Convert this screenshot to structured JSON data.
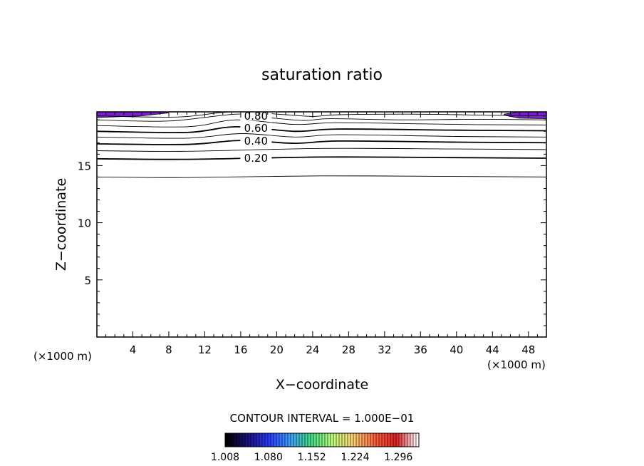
{
  "chart_data": {
    "type": "contour",
    "title": "saturation ratio",
    "xlabel": "X−coordinate",
    "ylabel": "Z−coordinate",
    "x_unit_left": "(×1000 m)",
    "x_unit_right": "(×1000 m)",
    "xlim": [
      0,
      50
    ],
    "ylim": [
      0,
      19.7
    ],
    "x_ticks": [
      4,
      8,
      12,
      16,
      20,
      24,
      28,
      32,
      36,
      40,
      44,
      48
    ],
    "y_ticks": [
      5,
      10,
      15
    ],
    "contour_interval_text": "CONTOUR INTERVAL = 1.000E−01",
    "contour_levels": [
      {
        "level": 0.1,
        "bold": false,
        "label": "",
        "points": [
          [
            0,
            14.0
          ],
          [
            10,
            13.95
          ],
          [
            25,
            14.1
          ],
          [
            40,
            14.05
          ],
          [
            50,
            14.0
          ]
        ]
      },
      {
        "level": 0.2,
        "bold": true,
        "label": "0.20",
        "label_x": 17.7,
        "points": [
          [
            0,
            15.6
          ],
          [
            10,
            15.55
          ],
          [
            25,
            15.75
          ],
          [
            40,
            15.7
          ],
          [
            50,
            15.65
          ]
        ]
      },
      {
        "level": 0.3,
        "bold": false,
        "label": "",
        "points": [
          [
            0,
            16.3
          ],
          [
            10,
            16.25
          ],
          [
            25,
            16.5
          ],
          [
            40,
            16.45
          ],
          [
            50,
            16.4
          ]
        ]
      },
      {
        "level": 0.4,
        "bold": true,
        "label": "0.40",
        "label_x": 17.7,
        "points": [
          [
            0,
            16.9
          ],
          [
            10,
            16.85
          ],
          [
            16,
            17.2
          ],
          [
            22,
            16.95
          ],
          [
            27,
            17.15
          ],
          [
            40,
            17.05
          ],
          [
            50,
            17.0
          ]
        ]
      },
      {
        "level": 0.5,
        "bold": false,
        "label": "",
        "points": [
          [
            0,
            17.5
          ],
          [
            10,
            17.4
          ],
          [
            16,
            17.8
          ],
          [
            22,
            17.5
          ],
          [
            27,
            17.7
          ],
          [
            40,
            17.55
          ],
          [
            50,
            17.5
          ]
        ]
      },
      {
        "level": 0.6,
        "bold": true,
        "label": "0.60",
        "label_x": 17.7,
        "points": [
          [
            0,
            18.0
          ],
          [
            10,
            17.9
          ],
          [
            15.5,
            18.4
          ],
          [
            22,
            18.0
          ],
          [
            27,
            18.2
          ],
          [
            40,
            18.1
          ],
          [
            50,
            18.05
          ]
        ]
      },
      {
        "level": 0.7,
        "bold": false,
        "label": "",
        "points": [
          [
            0,
            18.5
          ],
          [
            10,
            18.4
          ],
          [
            15.5,
            19.0
          ],
          [
            22,
            18.6
          ],
          [
            27,
            18.75
          ],
          [
            40,
            18.6
          ],
          [
            50,
            18.55
          ]
        ]
      },
      {
        "level": 0.8,
        "bold": false,
        "label": "0.80",
        "label_x": 17.7,
        "points": [
          [
            0,
            19.0
          ],
          [
            8,
            18.9
          ],
          [
            15.5,
            19.5
          ],
          [
            19,
            19.2
          ],
          [
            23,
            18.95
          ],
          [
            26,
            19.1
          ],
          [
            34,
            19.0
          ],
          [
            42,
            19.05
          ],
          [
            50,
            19.0
          ]
        ]
      },
      {
        "level": 0.9,
        "bold": false,
        "label": "",
        "points": [
          [
            0,
            19.35
          ],
          [
            9,
            19.25
          ],
          [
            15,
            19.7
          ],
          [
            21,
            19.45
          ],
          [
            24,
            19.3
          ],
          [
            27,
            19.45
          ],
          [
            35,
            19.5
          ],
          [
            44,
            19.4
          ],
          [
            50,
            19.35
          ]
        ]
      }
    ],
    "filled_regions": [
      {
        "color": "#7a1fd0",
        "points": [
          [
            0,
            19.7
          ],
          [
            7.8,
            19.7
          ],
          [
            7.9,
            19.6
          ],
          [
            5,
            19.35
          ],
          [
            0,
            19.2
          ]
        ]
      },
      {
        "color": "#7a1fd0",
        "points": [
          [
            45.3,
            19.5
          ],
          [
            47,
            19.7
          ],
          [
            50,
            19.7
          ],
          [
            50,
            19.1
          ],
          [
            47,
            19.15
          ],
          [
            45.3,
            19.4
          ]
        ]
      }
    ],
    "colorbar": {
      "vmin": 1.008,
      "vmax": 1.33,
      "tick_labels": [
        "1.008",
        "1.080",
        "1.152",
        "1.224",
        "1.296"
      ],
      "colors": [
        "#000000",
        "#1a1080",
        "#2a3aff",
        "#3fa0ff",
        "#3fe080",
        "#c0ff80",
        "#ffd070",
        "#ff6040",
        "#e02020",
        "#ffffff"
      ]
    }
  }
}
